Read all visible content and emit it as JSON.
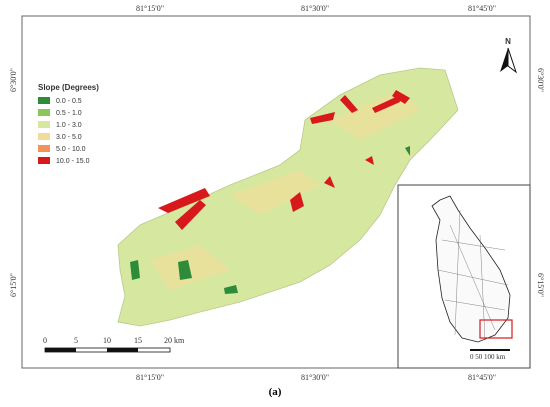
{
  "map": {
    "top_labels": [
      "81°15'0\"",
      "81°30'0\"",
      "81°45'0\""
    ],
    "bottom_labels": [
      "81°15'0\"",
      "81°30'0\"",
      "81°45'0\""
    ],
    "left_labels": [
      "6°30'0\"",
      "6°15'0\""
    ],
    "right_labels": [
      "6°30'0\"",
      "6°15'0\""
    ],
    "north": "N",
    "legend": {
      "title": "Slope (Degrees)",
      "items": [
        {
          "label": "0.0 - 0.5",
          "color": "#2e8b3a"
        },
        {
          "label": "0.5 - 1.0",
          "color": "#8cc65a"
        },
        {
          "label": "1.0 - 3.0",
          "color": "#d6e8a0"
        },
        {
          "label": "3.0 - 5.0",
          "color": "#f3dc9a"
        },
        {
          "label": "5.0 - 10.0",
          "color": "#f2945a"
        },
        {
          "label": "10.0 - 15.0",
          "color": "#d7191c"
        }
      ]
    },
    "scale_labels": [
      "0",
      "5",
      "10",
      "15",
      "20 km"
    ],
    "inset_scale": "0   50  100 km",
    "caption": "(a)"
  }
}
